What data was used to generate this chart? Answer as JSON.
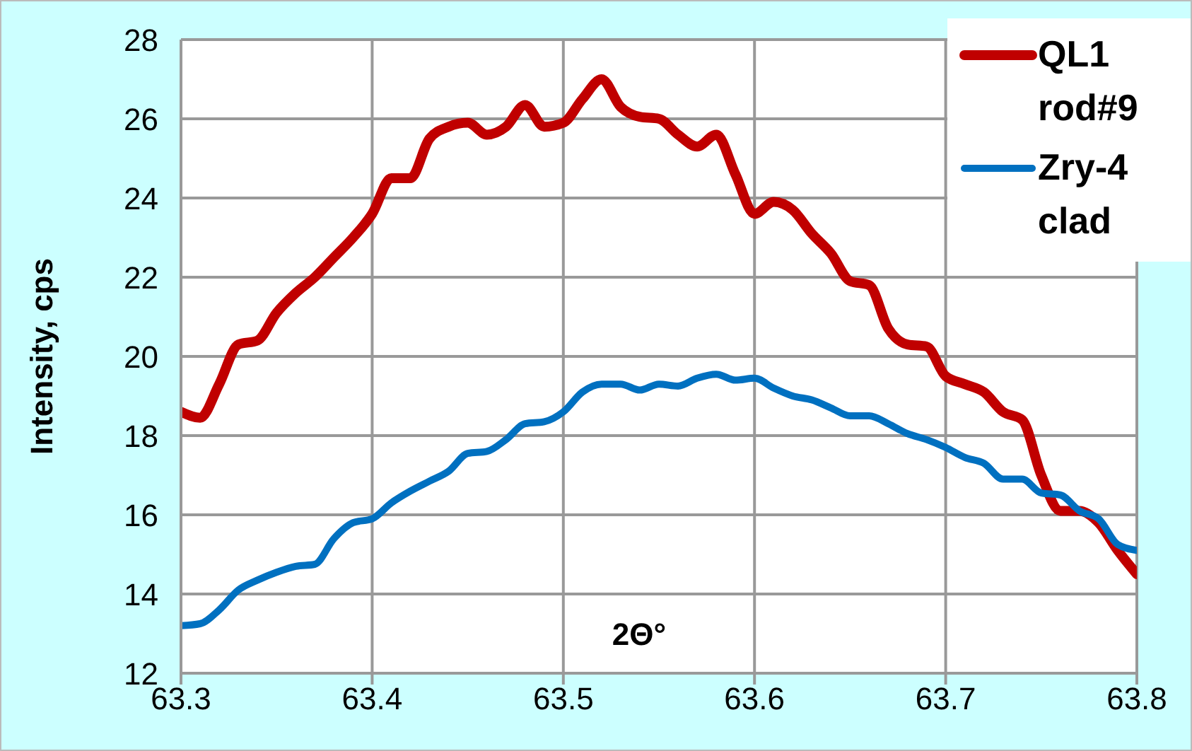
{
  "chart_data": {
    "type": "line",
    "xlabel": "2Θ°",
    "ylabel": "Intensity,  cps",
    "x": [
      63.3,
      63.31,
      63.32,
      63.33,
      63.34,
      63.35,
      63.36,
      63.37,
      63.38,
      63.39,
      63.4,
      63.41,
      63.42,
      63.43,
      63.44,
      63.45,
      63.46,
      63.47,
      63.48,
      63.49,
      63.5,
      63.51,
      63.52,
      63.53,
      63.54,
      63.55,
      63.56,
      63.57,
      63.58,
      63.59,
      63.6,
      63.61,
      63.62,
      63.63,
      63.64,
      63.65,
      63.66,
      63.67,
      63.68,
      63.69,
      63.7,
      63.71,
      63.72,
      63.73,
      63.74,
      63.75,
      63.76,
      63.77,
      63.78,
      63.79,
      63.8
    ],
    "series": [
      {
        "name": "QL1 rod#9",
        "color": "#c00000",
        "values": [
          18.6,
          18.45,
          19.3,
          20.3,
          20.4,
          21.1,
          21.6,
          22.0,
          22.5,
          23.0,
          23.6,
          24.5,
          24.5,
          25.5,
          25.8,
          25.9,
          25.6,
          25.8,
          26.35,
          25.8,
          25.9,
          26.5,
          27.0,
          26.3,
          26.05,
          26.0,
          25.6,
          25.3,
          25.6,
          24.6,
          23.6,
          23.9,
          23.7,
          23.1,
          22.6,
          21.9,
          21.8,
          20.7,
          20.3,
          20.25,
          19.5,
          19.3,
          19.1,
          18.6,
          18.4,
          17.0,
          16.1,
          16.1,
          15.8,
          15.1,
          14.5
        ]
      },
      {
        "name": "Zry-4 clad",
        "color": "#0070c0",
        "values": [
          13.2,
          13.25,
          13.6,
          14.1,
          14.35,
          14.55,
          14.7,
          14.75,
          15.4,
          15.8,
          15.9,
          16.3,
          16.6,
          16.85,
          17.1,
          17.55,
          17.6,
          17.9,
          18.3,
          18.35,
          18.6,
          19.1,
          19.3,
          19.3,
          19.15,
          19.3,
          19.25,
          19.45,
          19.55,
          19.4,
          19.45,
          19.2,
          19.0,
          18.9,
          18.7,
          18.5,
          18.5,
          18.3,
          18.05,
          17.9,
          17.7,
          17.45,
          17.3,
          16.9,
          16.9,
          16.55,
          16.5,
          16.1,
          15.9,
          15.25,
          15.1
        ]
      }
    ],
    "xlim": [
      63.3,
      63.8
    ],
    "xticks": [
      63.3,
      63.4,
      63.5,
      63.6,
      63.7,
      63.8
    ],
    "ylim": [
      12,
      28
    ],
    "yticks": [
      12,
      14,
      16,
      18,
      20,
      22,
      24,
      26,
      28
    ],
    "grid": true,
    "legend": "top right",
    "marker": "none",
    "line_style": "solid"
  }
}
